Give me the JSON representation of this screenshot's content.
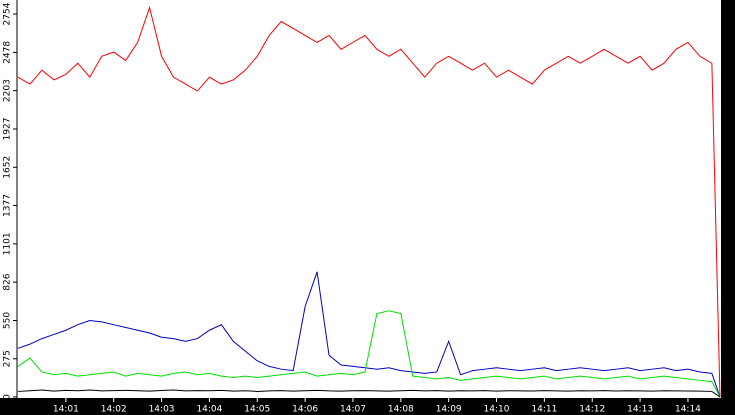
{
  "chart_data": {
    "type": "line",
    "x": [
      0,
      0.25,
      0.5,
      0.75,
      1,
      1.25,
      1.5,
      1.75,
      2,
      2.25,
      2.5,
      2.75,
      3,
      3.25,
      3.5,
      3.75,
      4,
      4.25,
      4.5,
      4.75,
      5,
      5.25,
      5.5,
      5.75,
      6,
      6.25,
      6.5,
      6.75,
      7,
      7.25,
      7.5,
      7.75,
      8,
      8.25,
      8.5,
      8.75,
      9,
      9.25,
      9.5,
      9.75,
      10,
      10.25,
      10.5,
      10.75,
      11,
      11.25,
      11.5,
      11.75,
      12,
      12.25,
      12.5,
      12.75,
      13,
      13.25,
      13.5,
      13.75,
      14,
      14.25,
      14.5,
      14.67
    ],
    "series": [
      {
        "color": "#ff0000",
        "values": [
          2300,
          2250,
          2350,
          2280,
          2320,
          2400,
          2300,
          2450,
          2480,
          2420,
          2550,
          2800,
          2450,
          2300,
          2250,
          2200,
          2300,
          2250,
          2280,
          2350,
          2450,
          2600,
          2700,
          2650,
          2600,
          2550,
          2600,
          2500,
          2550,
          2600,
          2500,
          2450,
          2500,
          2400,
          2300,
          2400,
          2450,
          2400,
          2350,
          2400,
          2300,
          2350,
          2300,
          2250,
          2350,
          2400,
          2450,
          2400,
          2450,
          2500,
          2450,
          2400,
          2450,
          2350,
          2400,
          2500,
          2550,
          2450,
          2400,
          0
        ]
      },
      {
        "color": "#0000c0",
        "values": [
          350,
          380,
          420,
          450,
          480,
          520,
          550,
          540,
          520,
          500,
          480,
          460,
          430,
          420,
          400,
          420,
          480,
          520,
          400,
          330,
          260,
          220,
          200,
          190,
          650,
          900,
          300,
          230,
          220,
          210,
          200,
          210,
          190,
          180,
          170,
          180,
          400,
          160,
          190,
          200,
          210,
          200,
          190,
          200,
          210,
          190,
          200,
          210,
          200,
          190,
          200,
          210,
          190,
          200,
          210,
          190,
          200,
          180,
          170,
          0
        ]
      },
      {
        "color": "#00e000",
        "values": [
          220,
          280,
          180,
          160,
          170,
          150,
          160,
          170,
          180,
          150,
          170,
          160,
          150,
          170,
          180,
          160,
          170,
          150,
          140,
          150,
          140,
          150,
          160,
          170,
          180,
          150,
          160,
          170,
          160,
          180,
          600,
          620,
          600,
          150,
          140,
          130,
          140,
          120,
          130,
          140,
          150,
          140,
          130,
          140,
          150,
          130,
          140,
          150,
          140,
          130,
          140,
          150,
          130,
          140,
          150,
          140,
          130,
          120,
          110,
          0
        ]
      },
      {
        "color": "#000000",
        "values": [
          40,
          45,
          50,
          42,
          48,
          45,
          50,
          44,
          46,
          48,
          45,
          42,
          47,
          50,
          44,
          46,
          45,
          48,
          42,
          45,
          40,
          44,
          46,
          42,
          45,
          48,
          44,
          42,
          45,
          46,
          44,
          42,
          45,
          48,
          44,
          46,
          42,
          45,
          44,
          46,
          42,
          45,
          44,
          43,
          46,
          44,
          42,
          45,
          44,
          46,
          43,
          45,
          44,
          42,
          45,
          44,
          43,
          42,
          40,
          0
        ]
      }
    ],
    "xlim": [
      0,
      14.67
    ],
    "xticks": [
      {
        "value": 1,
        "label": "14:01"
      },
      {
        "value": 2,
        "label": "14:02"
      },
      {
        "value": 3,
        "label": "14:03"
      },
      {
        "value": 4,
        "label": "14:04"
      },
      {
        "value": 5,
        "label": "14:05"
      },
      {
        "value": 6,
        "label": "14:06"
      },
      {
        "value": 7,
        "label": "14:07"
      },
      {
        "value": 8,
        "label": "14:08"
      },
      {
        "value": 9,
        "label": "14:09"
      },
      {
        "value": 10,
        "label": "14:10"
      },
      {
        "value": 11,
        "label": "14:11"
      },
      {
        "value": 12,
        "label": "14:12"
      },
      {
        "value": 13,
        "label": "14:13"
      },
      {
        "value": 14,
        "label": "14:14"
      }
    ],
    "ylim": [
      0,
      2754
    ],
    "yticks": [
      0,
      275,
      550,
      826,
      1101,
      1377,
      1652,
      1927,
      2203,
      2478,
      2754
    ]
  }
}
